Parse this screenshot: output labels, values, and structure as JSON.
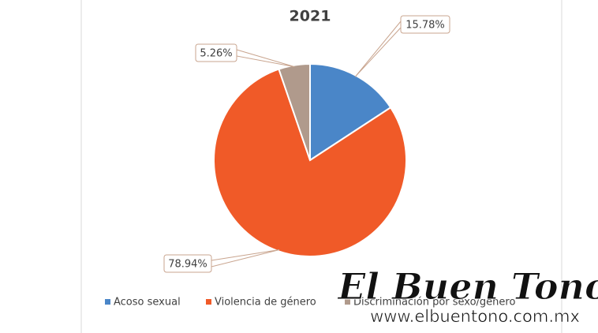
{
  "chart_data": {
    "type": "pie",
    "title": "2021",
    "categories": [
      "Acoso sexual",
      "Violencia de género",
      "Discriminación por sexo/género"
    ],
    "values": [
      15.78,
      78.94,
      5.26
    ],
    "value_labels": [
      "15.78%",
      "78.94%",
      "5.26%"
    ],
    "colors": [
      "#4a86c8",
      "#f05a28",
      "#b09a8c"
    ],
    "legend": "bottom"
  },
  "watermark": {
    "name": "El Buen Tono",
    "url": "www.elbuentono.com.mx"
  }
}
